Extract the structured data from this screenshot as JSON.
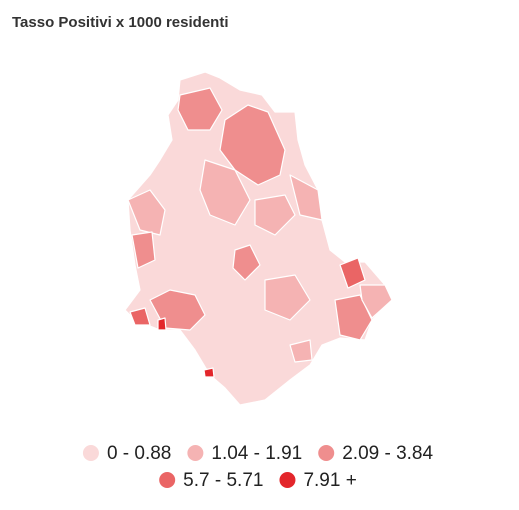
{
  "title": "Tasso Positivi x 1000 residenti",
  "legend": [
    {
      "label": "0 - 0.88",
      "color": "#fad9d9"
    },
    {
      "label": "1.04 - 1.91",
      "color": "#f5b3b3"
    },
    {
      "label": "2.09 - 3.84",
      "color": "#ef8e8e"
    },
    {
      "label": "5.7 - 5.71",
      "color": "#ea6565"
    },
    {
      "label": "7.91 +",
      "color": "#e3262b"
    }
  ]
}
